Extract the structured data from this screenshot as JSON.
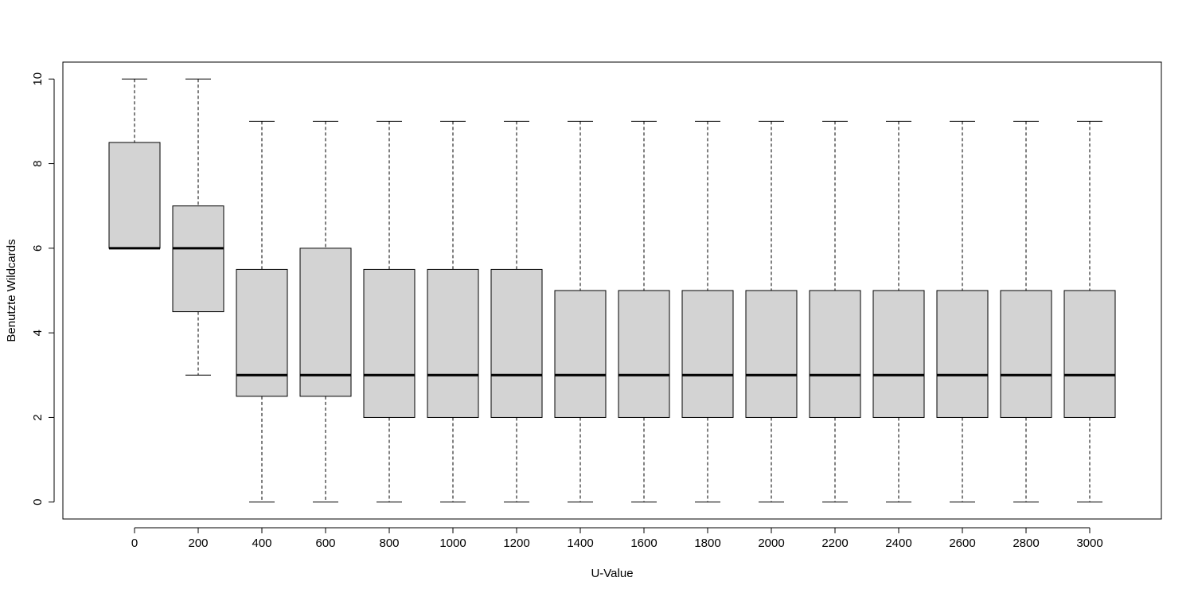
{
  "chart_data": {
    "type": "boxplot",
    "xlabel": "U-Value",
    "ylabel": "Benutzte Wildcards",
    "ylim": [
      -0.4,
      10.4
    ],
    "yticks": [
      0,
      2,
      4,
      6,
      8,
      10
    ],
    "categories": [
      "0",
      "200",
      "400",
      "600",
      "800",
      "1000",
      "1200",
      "1400",
      "1600",
      "1800",
      "2000",
      "2200",
      "2400",
      "2600",
      "2800",
      "3000"
    ],
    "boxes": [
      {
        "min": 6,
        "q1": 6,
        "median": 6,
        "q3": 8.5,
        "max": 10
      },
      {
        "min": 3,
        "q1": 4.5,
        "median": 6,
        "q3": 7,
        "max": 10
      },
      {
        "min": 0,
        "q1": 2.5,
        "median": 3,
        "q3": 5.5,
        "max": 9
      },
      {
        "min": 0,
        "q1": 2.5,
        "median": 3,
        "q3": 6,
        "max": 9
      },
      {
        "min": 0,
        "q1": 2,
        "median": 3,
        "q3": 5.5,
        "max": 9
      },
      {
        "min": 0,
        "q1": 2,
        "median": 3,
        "q3": 5.5,
        "max": 9
      },
      {
        "min": 0,
        "q1": 2,
        "median": 3,
        "q3": 5.5,
        "max": 9
      },
      {
        "min": 0,
        "q1": 2,
        "median": 3,
        "q3": 5,
        "max": 9
      },
      {
        "min": 0,
        "q1": 2,
        "median": 3,
        "q3": 5,
        "max": 9
      },
      {
        "min": 0,
        "q1": 2,
        "median": 3,
        "q3": 5,
        "max": 9
      },
      {
        "min": 0,
        "q1": 2,
        "median": 3,
        "q3": 5,
        "max": 9
      },
      {
        "min": 0,
        "q1": 2,
        "median": 3,
        "q3": 5,
        "max": 9
      },
      {
        "min": 0,
        "q1": 2,
        "median": 3,
        "q3": 5,
        "max": 9
      },
      {
        "min": 0,
        "q1": 2,
        "median": 3,
        "q3": 5,
        "max": 9
      },
      {
        "min": 0,
        "q1": 2,
        "median": 3,
        "q3": 5,
        "max": 9
      },
      {
        "min": 0,
        "q1": 2,
        "median": 3,
        "q3": 5,
        "max": 9
      }
    ],
    "box_color": "#d3d3d3",
    "grid": false,
    "legend": "none"
  }
}
